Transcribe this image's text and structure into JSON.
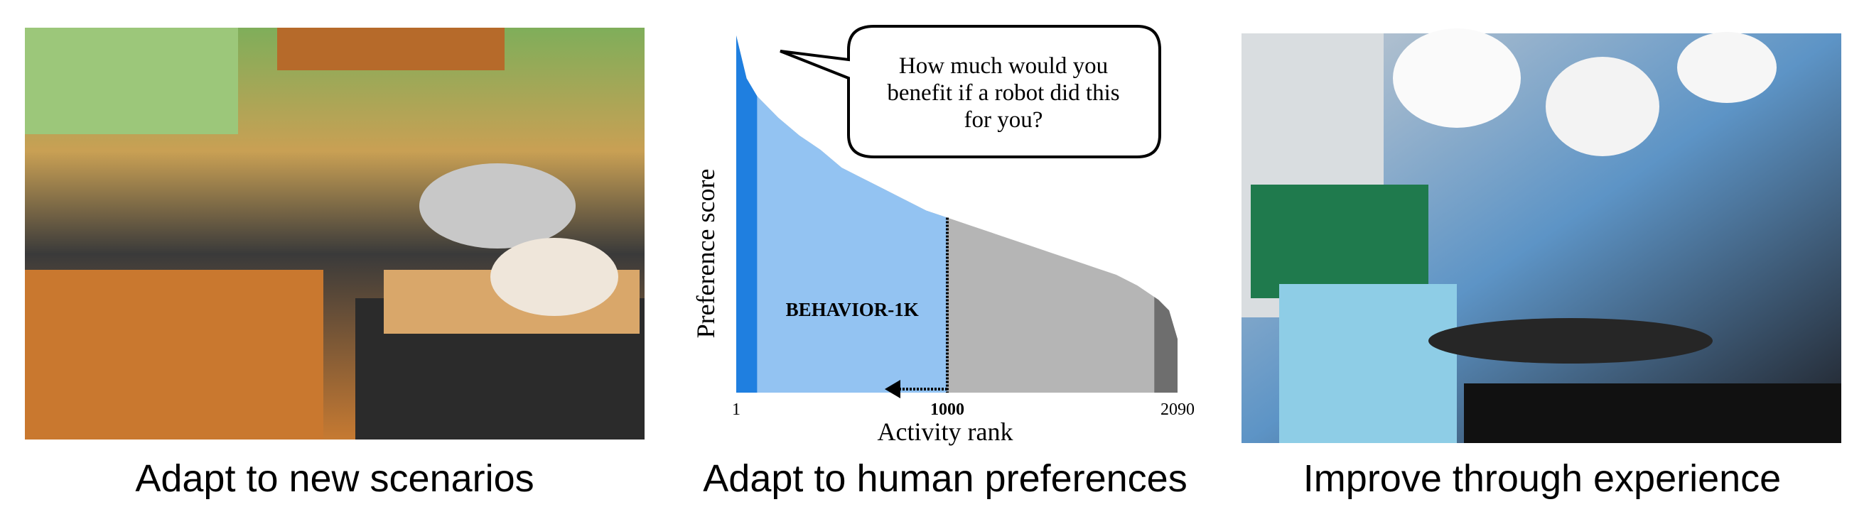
{
  "panels": [
    {
      "caption": "Adapt to new scenarios"
    },
    {
      "caption": "Adapt to human preferences"
    },
    {
      "caption": "Improve through experience"
    }
  ],
  "speech_bubble": {
    "lines": [
      "How much would you",
      "benefit if a robot did this",
      "for you?"
    ]
  },
  "chart_data": {
    "type": "area",
    "xlabel": "Activity rank",
    "ylabel": "Preference score",
    "x": [
      1,
      50,
      100,
      200,
      300,
      400,
      500,
      600,
      700,
      800,
      900,
      1000,
      1100,
      1200,
      1300,
      1400,
      1500,
      1600,
      1700,
      1800,
      1900,
      2000,
      2050,
      2090
    ],
    "values": [
      100,
      88,
      83,
      77,
      72,
      68,
      63,
      60,
      57,
      54,
      51,
      49,
      47,
      45,
      43,
      41,
      39,
      37,
      35,
      33,
      30,
      26,
      23,
      15
    ],
    "color": "#b5b5b5",
    "xlim": [
      1,
      2090
    ],
    "ylim": [
      0,
      100
    ],
    "xticks": [
      1,
      1000,
      2090
    ],
    "marker_x": 1000,
    "regions": [
      {
        "xlim": [
          1,
          100
        ],
        "color": "#1f7fe0"
      },
      {
        "xlim": [
          100,
          1000
        ],
        "color": "#93c3f2",
        "label": "BEHAVIOR-1K"
      },
      {
        "xlim": [
          1980,
          2090
        ],
        "color": "#6e6e6e"
      }
    ]
  }
}
